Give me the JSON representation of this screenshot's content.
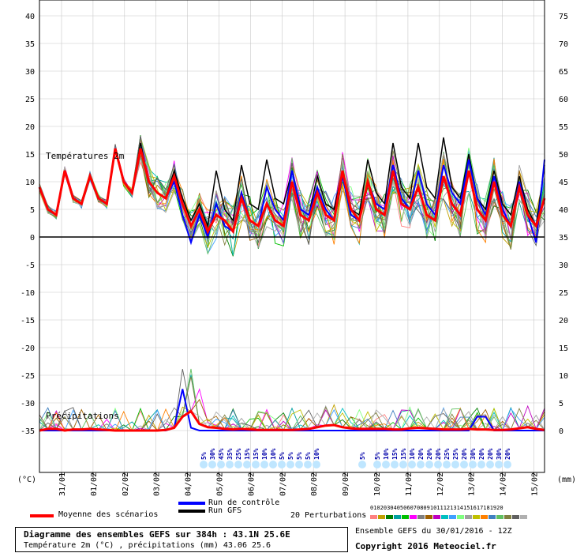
{
  "header": {
    "temp_label": "Températures 2m",
    "precip_label": "Précipitations",
    "left_unit": "(°C)",
    "right_unit": "(mm)"
  },
  "legend": {
    "mean_label": "Moyenne des scénarios",
    "control_label": "Run de contrôle",
    "gfs_label": "Run GFS",
    "perturbations_label": "20 Perturbations",
    "perturbation_numbers": [
      "01",
      "02",
      "03",
      "04",
      "05",
      "06",
      "07",
      "08",
      "09",
      "10",
      "11",
      "12",
      "13",
      "14",
      "15",
      "16",
      "17",
      "18",
      "19",
      "20"
    ],
    "ensemble_label": "Ensemble GEFS du 30/01/2016 - 12Z",
    "copyright": "Copyright 2016 Meteociel.fr",
    "title_line": "Diagramme des ensembles GEFS sur 384h : 43.1N 25.6E",
    "subtitle_line": "Température 2m (°C) , précipitations (mm) 43.06 25.6",
    "colors": {
      "mean": "#ff0000",
      "control": "#0000ff",
      "gfs": "#000000",
      "perturbations": [
        "#ff8080",
        "#c0a000",
        "#008000",
        "#00a0a0",
        "#00c000",
        "#ff00ff",
        "#808080",
        "#a06000",
        "#c000c0",
        "#00c0c0",
        "#40a0ff",
        "#80ff80",
        "#a0a0a0",
        "#c0c000",
        "#ff8000",
        "#4080c0",
        "#60c060",
        "#808040",
        "#606060",
        "#b0b0b0"
      ]
    }
  },
  "chart_data": {
    "type": "line",
    "left_axis": {
      "label": "(°C)",
      "ticks": [
        40,
        35,
        30,
        25,
        20,
        15,
        10,
        5,
        0,
        -5,
        -10,
        -15,
        -20,
        -25,
        -30,
        -35
      ],
      "range": [
        -35,
        43
      ]
    },
    "right_axis": {
      "label": "(mm)",
      "ticks": [
        75,
        70,
        65,
        60,
        55,
        50,
        45,
        40,
        35,
        30,
        25,
        20,
        15,
        10,
        5,
        0
      ],
      "range": [
        0,
        78
      ]
    },
    "x_dates": [
      "31/01",
      "01/02",
      "02/02",
      "03/02",
      "04/02",
      "05/02",
      "06/02",
      "07/02",
      "08/02",
      "09/02",
      "10/02",
      "11/02",
      "12/02",
      "13/02",
      "14/02",
      "15/02"
    ],
    "mean_temp": [
      9,
      5,
      4,
      12,
      7,
      6,
      11,
      7,
      6,
      16,
      10,
      8,
      16,
      10,
      8,
      7,
      11,
      6,
      2,
      5,
      1,
      4,
      3,
      1,
      7,
      3,
      2,
      6,
      3,
      2,
      10,
      4,
      3,
      8,
      4,
      3,
      12,
      5,
      3,
      10,
      5,
      4,
      12,
      6,
      5,
      9,
      4,
      3,
      11,
      6,
      4,
      12,
      5,
      3,
      10,
      4,
      2,
      9,
      4,
      2,
      7
    ],
    "control_temp": [
      9,
      5,
      4,
      12,
      7,
      6,
      11,
      7,
      6,
      16,
      10,
      8,
      16,
      10,
      8,
      7,
      10,
      4,
      -1,
      4,
      0,
      6,
      2,
      1,
      8,
      3,
      2,
      9,
      5,
      3,
      12,
      5,
      4,
      9,
      5,
      3,
      11,
      4,
      3,
      10,
      6,
      5,
      13,
      7,
      5,
      12,
      6,
      4,
      13,
      8,
      6,
      14,
      7,
      4,
      11,
      5,
      2,
      10,
      4,
      -1,
      14
    ],
    "gfs_temp": [
      9,
      5,
      4,
      12,
      7,
      6,
      11,
      7,
      6,
      16,
      10,
      8,
      17,
      10,
      8,
      7,
      12,
      7,
      3,
      6,
      2,
      12,
      5,
      3,
      13,
      6,
      5,
      14,
      7,
      6,
      12,
      5,
      4,
      11,
      6,
      5,
      12,
      5,
      4,
      14,
      8,
      6,
      17,
      9,
      7,
      17,
      9,
      7,
      18,
      9,
      7,
      15,
      7,
      5,
      12,
      6,
      4,
      11,
      5,
      2,
      13
    ],
    "mean_precip": [
      0,
      0.3,
      0.3,
      0,
      0.2,
      0.2,
      0.3,
      0.2,
      0.1,
      0,
      0,
      0,
      0,
      0,
      0,
      0.1,
      0.5,
      2.5,
      3.5,
      1.2,
      0.6,
      0.5,
      0.3,
      0.2,
      0.3,
      0.2,
      0.1,
      0.1,
      0.1,
      0.1,
      0.1,
      0.2,
      0.3,
      0.6,
      0.9,
      1.0,
      0.6,
      0.4,
      0.3,
      0.3,
      0.3,
      0.3,
      0.2,
      0.2,
      0.4,
      0.5,
      0.4,
      0.3,
      0.2,
      0.2,
      0.2,
      0.3,
      0.2,
      0.2,
      0.1,
      0.1,
      0.2,
      0.4,
      0.6,
      0.3,
      0.1
    ],
    "control_precip": [
      0,
      0,
      0,
      0,
      0,
      0,
      0,
      0,
      0,
      0,
      0,
      0,
      0,
      0,
      0,
      0,
      0.5,
      7.5,
      0.5,
      0,
      0,
      0,
      0,
      0,
      0,
      0,
      0,
      0,
      0,
      0,
      0,
      0,
      0,
      0,
      0,
      0,
      0,
      0,
      0,
      0,
      0,
      0,
      0,
      0,
      0,
      0,
      0,
      0,
      0,
      0,
      0,
      0,
      2.5,
      2.5,
      0,
      0,
      0,
      0,
      0,
      0,
      0
    ],
    "probability_labels": [
      "5%",
      "30%",
      "45%",
      "35%",
      "25%",
      "15%",
      "15%",
      "10%",
      "10%",
      "5%",
      "5%",
      "5%",
      "5%",
      "10%",
      "5%",
      "5%",
      "10%",
      "15%",
      "15%",
      "10%",
      "20%",
      "20%",
      "20%",
      "25%",
      "25%",
      "20%",
      "30%",
      "20%",
      "20%",
      "30%",
      "20%"
    ]
  }
}
